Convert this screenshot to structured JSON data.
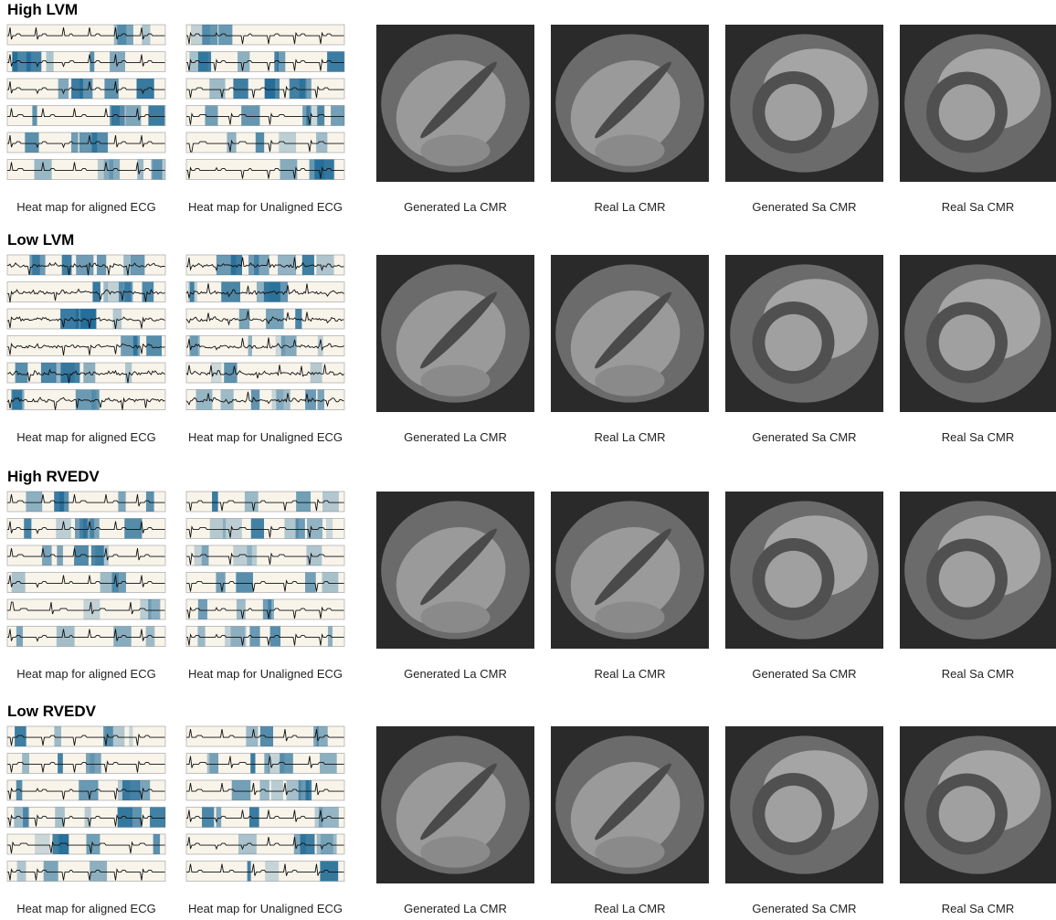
{
  "sections": [
    {
      "title": "High LVM",
      "captions": [
        "Heat map for aligned ECG",
        "Heat map for Unaligned ECG",
        "Generated La CMR",
        "Real La CMR",
        "Generated Sa CMR",
        "Real Sa CMR"
      ]
    },
    {
      "title": "Low LVM",
      "captions": [
        "Heat map for aligned ECG",
        "Heat map for Unaligned ECG",
        "Generated La CMR",
        "Real La CMR",
        "Generated Sa CMR",
        "Real Sa CMR"
      ]
    },
    {
      "title": "High RVEDV",
      "captions": [
        "Heat map for aligned ECG",
        "Heat map for Unaligned ECG",
        "Generated La CMR",
        "Real La CMR",
        "Generated Sa CMR",
        "Real Sa CMR"
      ]
    },
    {
      "title": "Low RVEDV",
      "captions": [
        "Heat map for aligned ECG",
        "Heat map for Unaligned ECG",
        "Generated La CMR",
        "Real La CMR",
        "Generated Sa CMR",
        "Real Sa CMR"
      ]
    }
  ]
}
